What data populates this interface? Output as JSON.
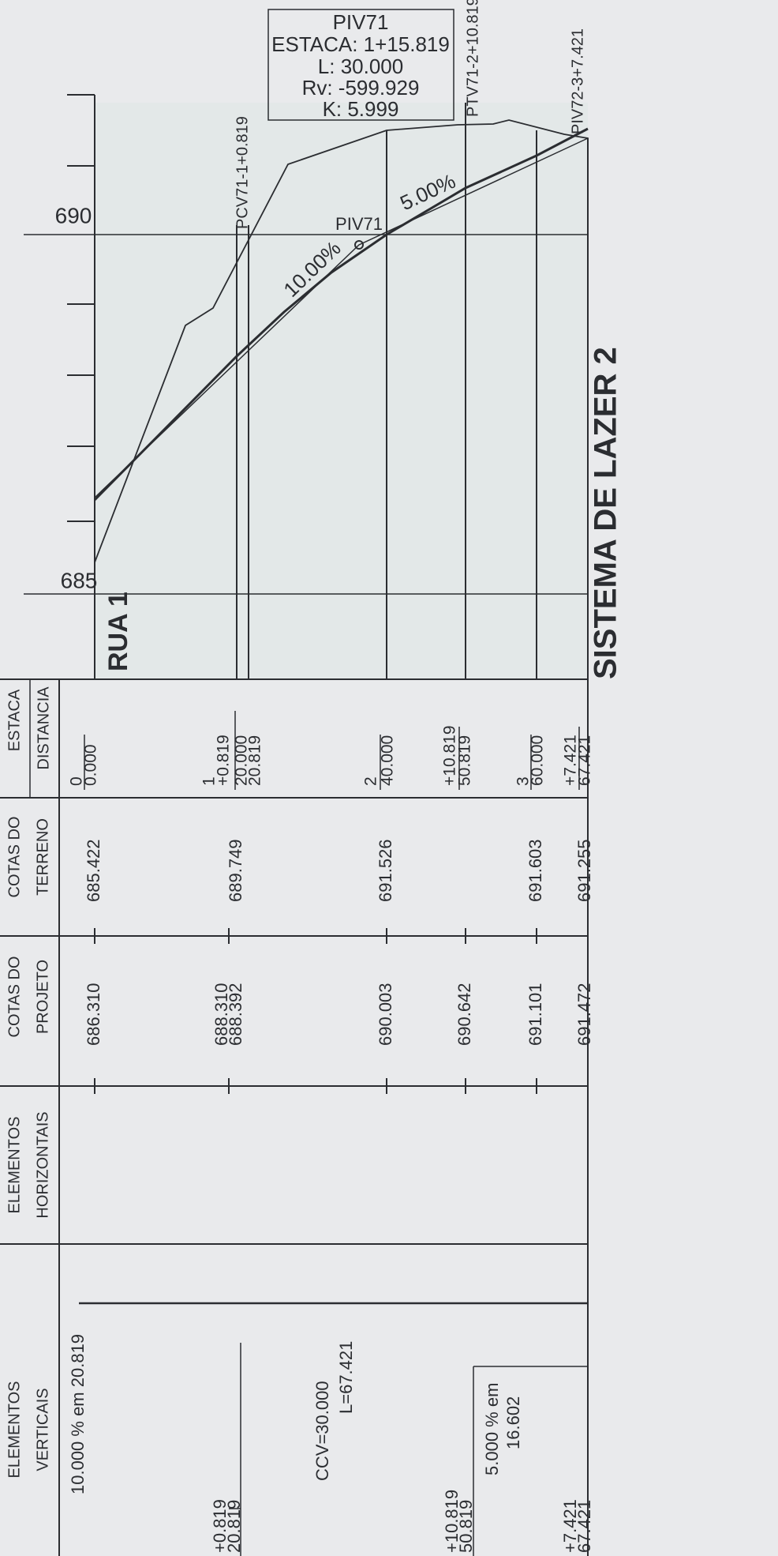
{
  "title": "SISTEMA DE LAZER 2",
  "street": "RUA 1",
  "elevation_labels": [
    "690",
    "685"
  ],
  "piv_box": {
    "lines": [
      "PIV71",
      "ESTACA: 1+15.819",
      "L: 30.000",
      "Rv: -599.929",
      "K: 5.999"
    ]
  },
  "profile_labels": {
    "pcv": "PCV71-1+0.819",
    "ptv": "PTV71-2+10.819",
    "piv72": "PIV72-3+7.421",
    "piv": "PIV71",
    "grade_1": "10.00%",
    "grade_2": "5.00%"
  },
  "table": {
    "headers": {
      "estaca": "ESTACA",
      "distancia": "DISTANCIA",
      "terreno": [
        "COTAS DO",
        "TERRENO"
      ],
      "projeto": [
        "COTAS DO",
        "PROJETO"
      ],
      "horizontais": [
        "ELEMENTOS",
        "HORIZONTAIS"
      ],
      "verticais": [
        "ELEMENTOS",
        "VERTICAIS"
      ]
    },
    "estaca": [
      "0",
      "0.000",
      "1",
      "+0.819",
      "20.000",
      "20.819",
      "2",
      "40.000",
      "+10.819",
      "50.819",
      "3",
      "60.000",
      "+7.421",
      "67.421"
    ],
    "terreno": [
      "685.422",
      "689.749",
      "691.526",
      "691.603",
      "691.255"
    ],
    "projeto": [
      "686.310",
      "688.310",
      "688.392",
      "690.003",
      "690.642",
      "691.101",
      "691.472"
    ],
    "verticais": [
      "10.000 % em 20.819",
      "+0.819",
      "20.819",
      "CCV=30.000",
      "L=67.421",
      "+10.819",
      "50.819",
      "5.000 % em",
      "16.602",
      "+7.421",
      "67.421"
    ]
  }
}
